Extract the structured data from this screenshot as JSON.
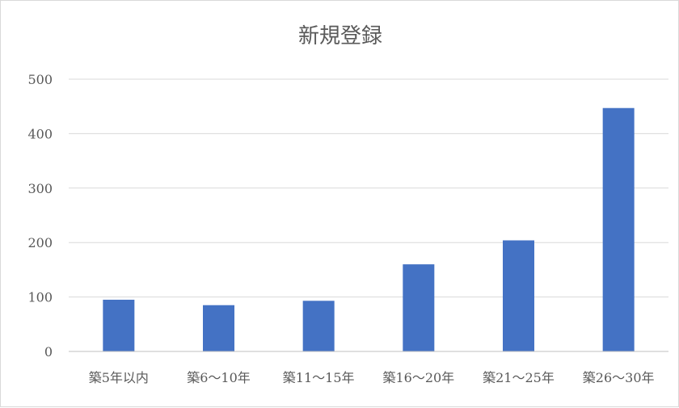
{
  "chart_data": {
    "type": "bar",
    "title": "新規登録",
    "categories": [
      "築5年以内",
      "築6～10年",
      "築11～15年",
      "築16～20年",
      "築21～25年",
      "築26～30年"
    ],
    "values": [
      95,
      85,
      93,
      160,
      204,
      447
    ],
    "xlabel": "",
    "ylabel": "",
    "ylim": [
      0,
      500
    ],
    "yticks": [
      0,
      100,
      200,
      300,
      400,
      500
    ],
    "grid": true,
    "legend": "none",
    "bar_color": "#4472c4"
  }
}
